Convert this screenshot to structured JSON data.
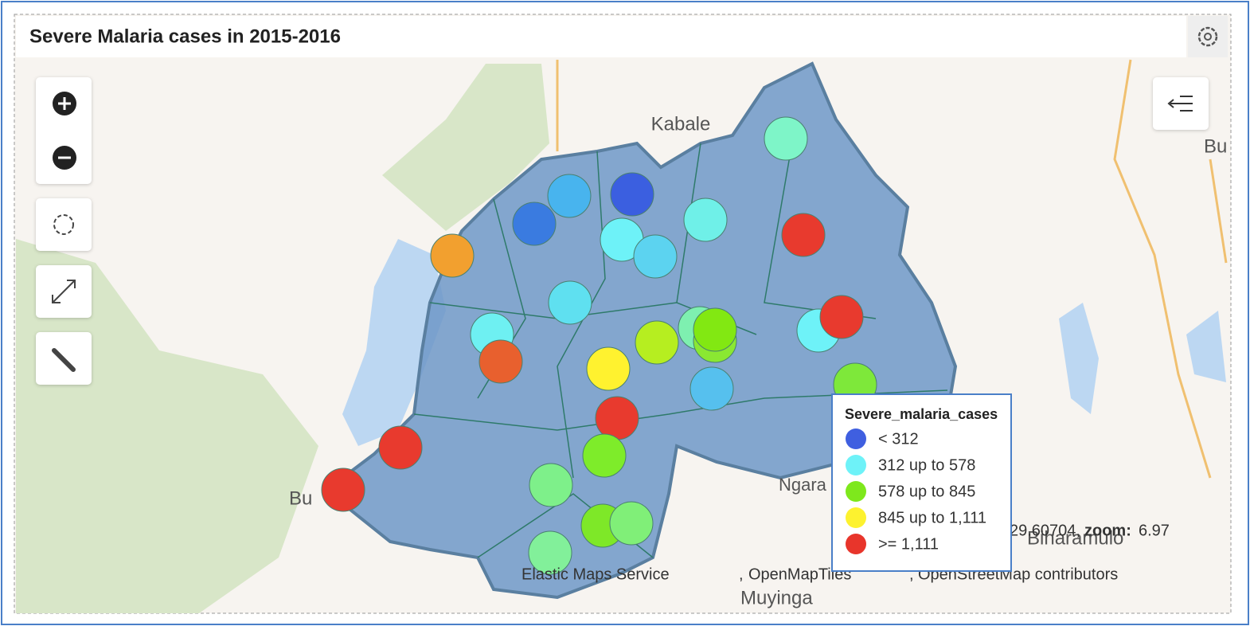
{
  "panel": {
    "title": "Severe Malaria cases in 2015-2016"
  },
  "map_labels": {
    "kabale": "Kabale",
    "bu_right": "Bu",
    "bu_left": "Bu",
    "ngara": "Ngara",
    "muyinga": "Muyinga",
    "biharamulo": "Biharamulo"
  },
  "status": {
    "coords": "29.60704,",
    "zoom_label": "zoom:",
    "zoom": "6.97"
  },
  "attribution": {
    "source1": "Elastic Maps Service",
    "source2": "OpenMapTiles",
    "source3": "OpenStreetMap contributors",
    "sep": ","
  },
  "legend": {
    "title": "Severe_malaria_cases",
    "items": [
      {
        "label": "< 312",
        "color": "#3f5fe0"
      },
      {
        "label": "312 up to 578",
        "color": "#6ef2f8"
      },
      {
        "label": "578 up to 845",
        "color": "#7ee81c"
      },
      {
        "label": "845 up to 1,111",
        "color": "#fdf22f"
      },
      {
        "label": ">= 1,111",
        "color": "#e8352b"
      }
    ]
  }
}
